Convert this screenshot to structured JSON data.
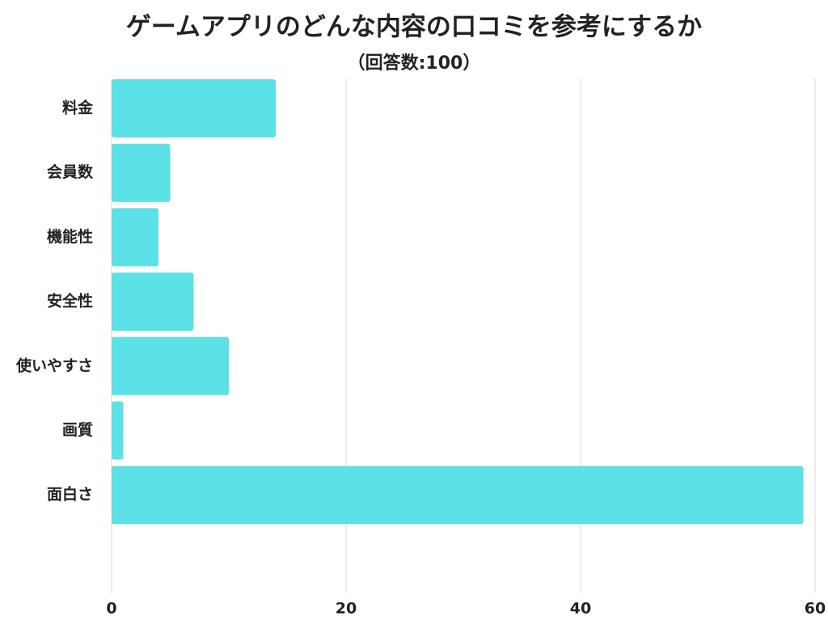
{
  "chart_data": {
    "type": "bar",
    "orientation": "horizontal",
    "title": "ゲームアプリのどんな内容の口コミを参考にするか",
    "subtitle": "（回答数:100）",
    "categories": [
      "料金",
      "会員数",
      "機能性",
      "安全性",
      "使いやすさ",
      "画質",
      "面白さ"
    ],
    "values": [
      14,
      5,
      4,
      7,
      10,
      1,
      59
    ],
    "color": "#5ce1e6",
    "xlim": [
      0,
      60
    ],
    "xticks": [
      0,
      20,
      40,
      60
    ],
    "grid": true
  }
}
